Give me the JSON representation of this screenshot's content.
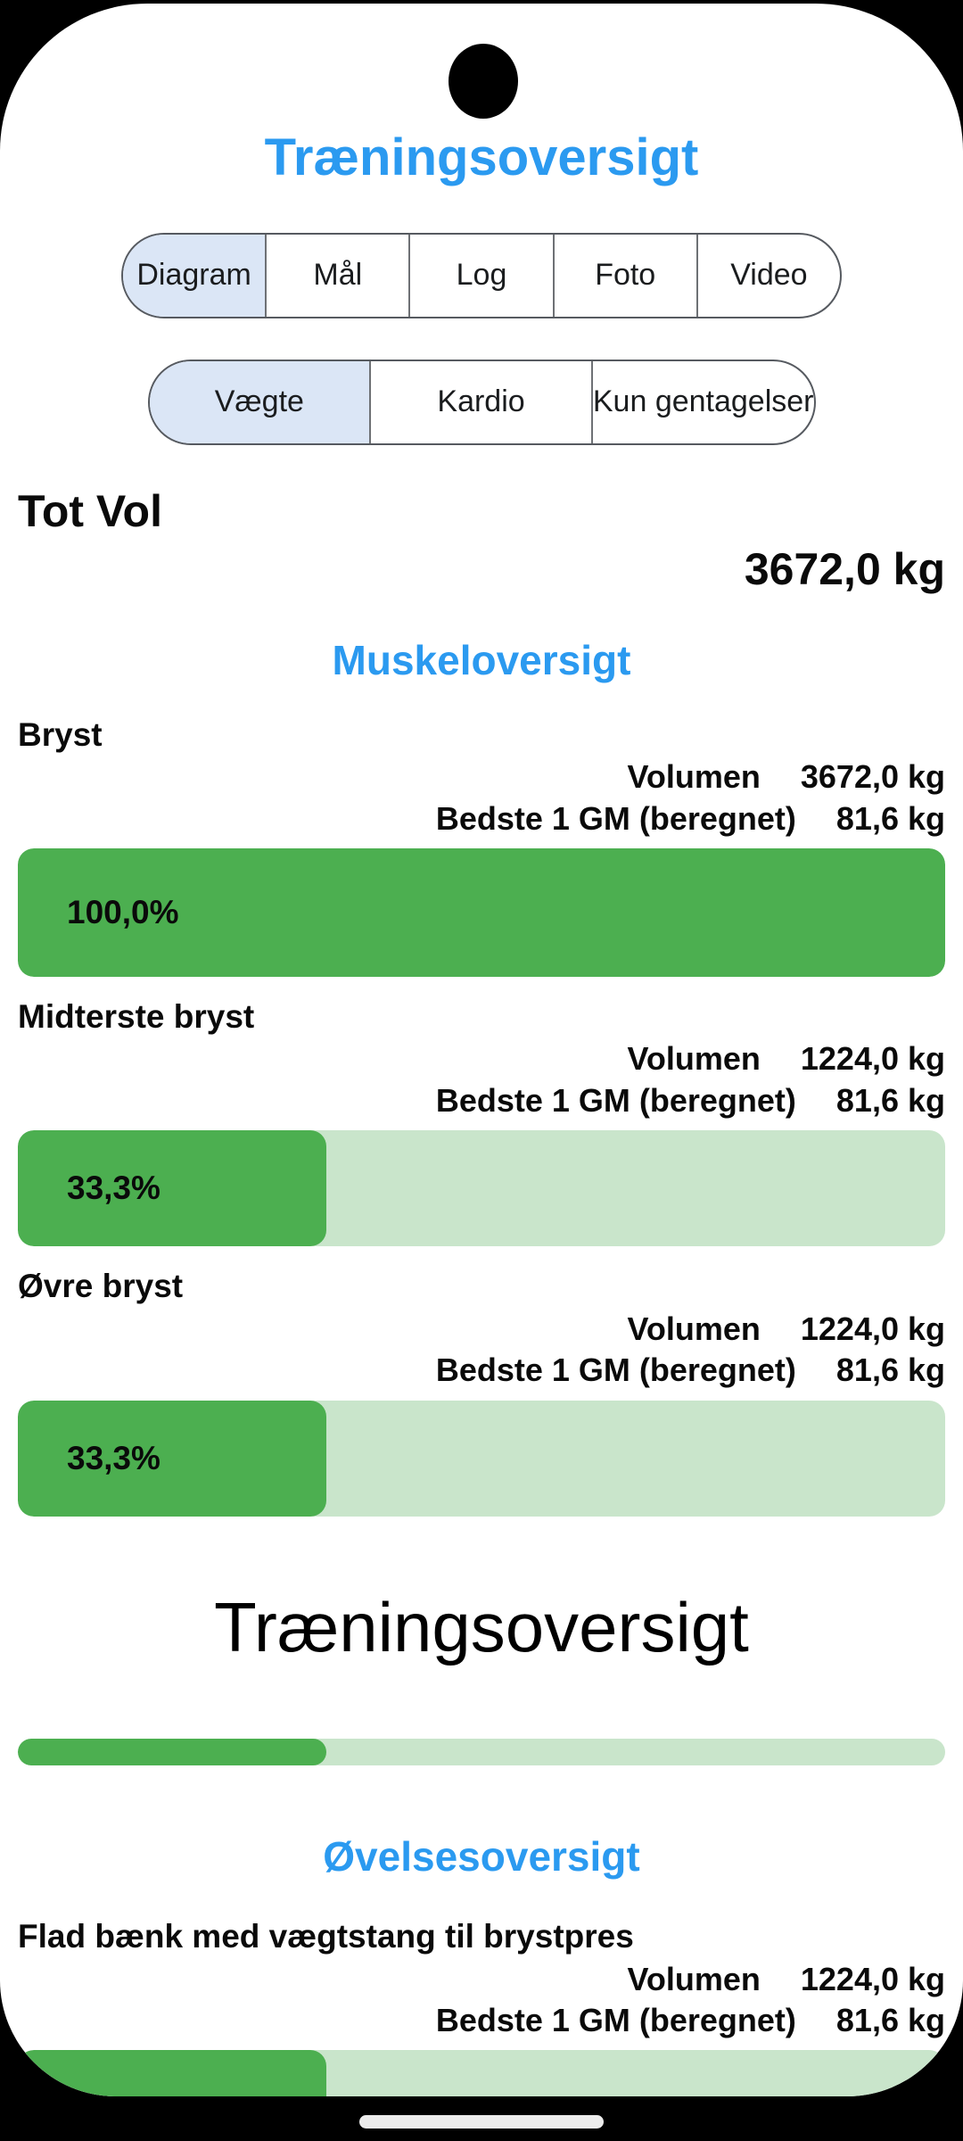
{
  "header": {
    "title": "Træningsoversigt"
  },
  "primary_tabs": {
    "selected": "Diagram",
    "items": [
      {
        "label": "Diagram"
      },
      {
        "label": "Mål"
      },
      {
        "label": "Log"
      },
      {
        "label": "Foto"
      },
      {
        "label": "Video"
      }
    ]
  },
  "secondary_tabs": {
    "selected": "Vægte",
    "items": [
      {
        "label": "Vægte"
      },
      {
        "label": "Kardio"
      },
      {
        "label": "Kun gentagelser"
      }
    ]
  },
  "total": {
    "label": "Tot Vol",
    "value": "3672,0 kg"
  },
  "muscle_overview": {
    "heading": "Muskeloversigt",
    "volume_label": "Volumen",
    "best_label": "Bedste 1 GM (beregnet)",
    "items": [
      {
        "name": "Bryst",
        "volume": "3672,0 kg",
        "best": "81,6 kg",
        "percent_label": "100,0%",
        "percent": 100
      },
      {
        "name": "Midterste bryst",
        "volume": "1224,0 kg",
        "best": "81,6 kg",
        "percent_label": "33,3%",
        "percent": 33.3
      },
      {
        "name": "Øvre bryst",
        "volume": "1224,0 kg",
        "best": "81,6 kg",
        "percent_label": "33,3%",
        "percent": 33.3
      }
    ]
  },
  "summary": {
    "heading": "Træningsoversigt",
    "percent": 33.3
  },
  "exercise_overview": {
    "heading": "Øvelsesoversigt",
    "volume_label": "Volumen",
    "best_label": "Bedste 1 GM (beregnet)",
    "items": [
      {
        "name": "Flad bænk med vægtstang til brystpres",
        "volume": "1224,0 kg",
        "best": "81,6 kg",
        "percent": 33.3
      }
    ]
  },
  "colors": {
    "accent_blue": "#2b9af0",
    "bar_green": "#4caf50",
    "bar_green_light": "#c9e5cb",
    "chip_selected_blue": "#dbe6f6"
  }
}
